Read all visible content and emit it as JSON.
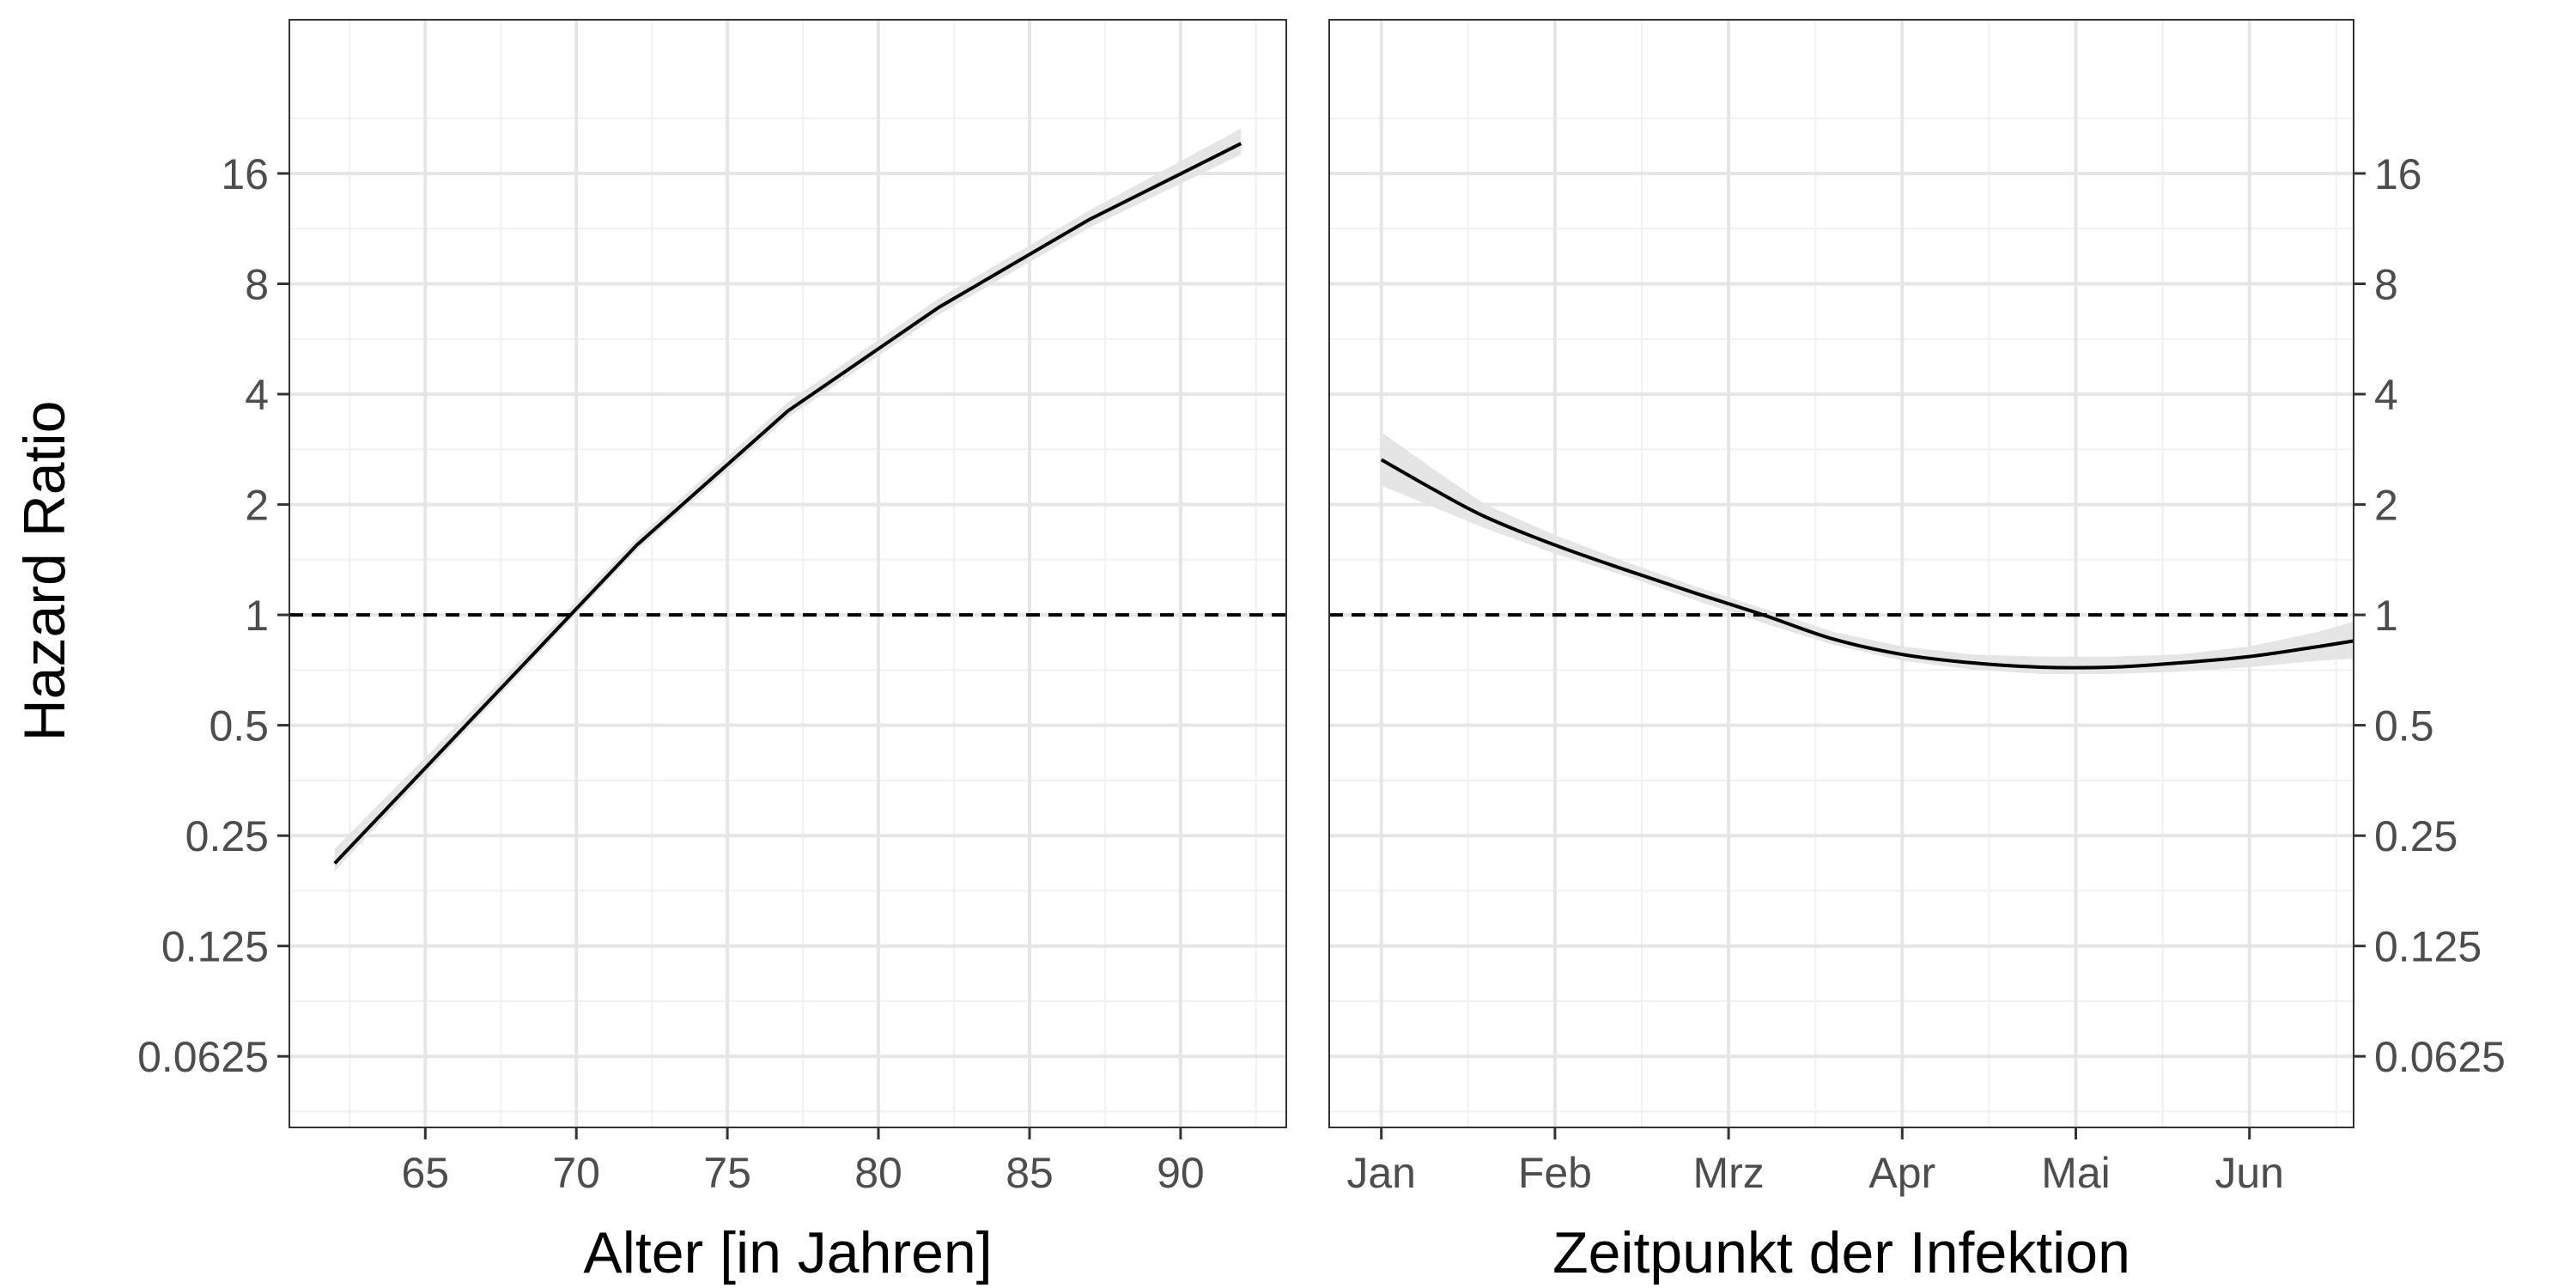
{
  "y_axis_title": "Hazard Ratio",
  "chart_data": [
    {
      "type": "line",
      "xlabel": "Alter [in Jahren]",
      "ylabel": "Hazard Ratio",
      "y_scale": "log2",
      "xlim": [
        60.5,
        93.5
      ],
      "ylim": [
        0.04,
        42
      ],
      "x_ticks": [
        65,
        70,
        75,
        80,
        85,
        90
      ],
      "y_ticks": [
        0.0625,
        0.125,
        0.25,
        0.5,
        1,
        2,
        4,
        8,
        16
      ],
      "y_tick_labels": [
        "0.0625",
        "0.125",
        "0.25",
        "0.5",
        "1",
        "2",
        "4",
        "8",
        "16"
      ],
      "y_tick_side": "left",
      "reference_line": 1,
      "grid": true,
      "series": [
        {
          "x": [
            62,
            67,
            72,
            77,
            82,
            87,
            92
          ],
          "y": [
            0.21,
            0.57,
            1.55,
            3.6,
            6.9,
            12.0,
            19.3
          ],
          "ci_lower": [
            0.2,
            0.55,
            1.5,
            3.45,
            6.6,
            11.4,
            18.0
          ],
          "ci_upper": [
            0.23,
            0.6,
            1.62,
            3.8,
            7.3,
            12.7,
            21.2
          ]
        }
      ]
    },
    {
      "type": "line",
      "xlabel": "Zeitpunkt der Infektion",
      "ylabel": "",
      "y_scale": "log2",
      "xlim": [
        0.7,
        6.6
      ],
      "ylim": [
        0.04,
        42
      ],
      "x_ticks": [
        1,
        2,
        3,
        4,
        5,
        6
      ],
      "x_tick_labels": [
        "Jan",
        "Feb",
        "Mrz",
        "Apr",
        "Mai",
        "Jun"
      ],
      "y_ticks": [
        0.0625,
        0.125,
        0.25,
        0.5,
        1,
        2,
        4,
        8,
        16
      ],
      "y_tick_labels": [
        "0.0625",
        "0.125",
        "0.25",
        "0.5",
        "1",
        "2",
        "4",
        "8",
        "16"
      ],
      "y_tick_side": "right",
      "reference_line": 1,
      "grid": true,
      "series": [
        {
          "x": [
            1.0,
            1.3,
            1.6,
            2.0,
            2.4,
            2.8,
            3.2,
            3.6,
            4.0,
            4.4,
            4.8,
            5.2,
            5.6,
            6.0,
            6.4,
            6.8
          ],
          "y": [
            2.65,
            2.2,
            1.85,
            1.55,
            1.33,
            1.15,
            1.0,
            0.86,
            0.78,
            0.74,
            0.72,
            0.72,
            0.74,
            0.77,
            0.82,
            0.88
          ],
          "ci_lower": [
            2.25,
            1.97,
            1.72,
            1.47,
            1.28,
            1.1,
            0.95,
            0.83,
            0.75,
            0.71,
            0.69,
            0.69,
            0.7,
            0.72,
            0.75,
            0.77
          ],
          "ci_upper": [
            3.15,
            2.5,
            2.0,
            1.65,
            1.4,
            1.2,
            1.04,
            0.9,
            0.82,
            0.78,
            0.77,
            0.77,
            0.78,
            0.82,
            0.9,
            1.02
          ]
        }
      ]
    }
  ]
}
